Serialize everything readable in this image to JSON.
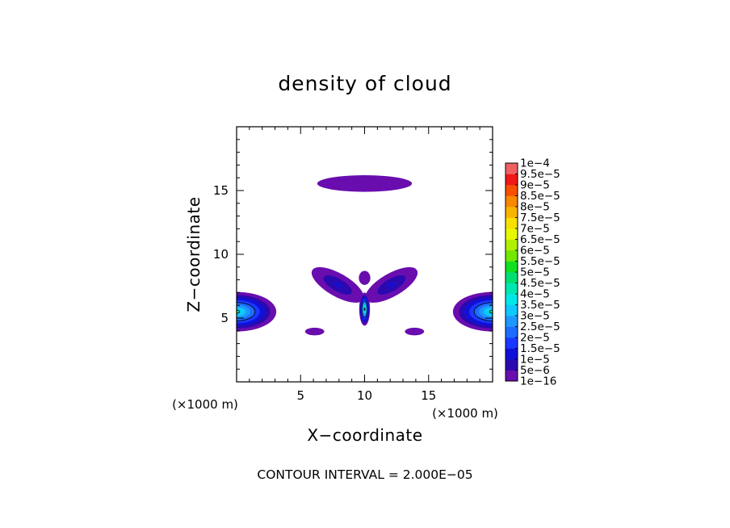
{
  "chart_data": {
    "type": "heatmap",
    "title": "density of cloud",
    "xlabel": "X−coordinate",
    "ylabel": "Z−coordinate",
    "xunit": "(×1000 m)",
    "yunit": "(×1000 m)",
    "xlim": [
      0,
      20
    ],
    "ylim": [
      0,
      20
    ],
    "xticks": [
      5,
      10,
      15
    ],
    "yticks": [
      5,
      10,
      15
    ],
    "xtick_labels": [
      "5",
      "10",
      "15"
    ],
    "ytick_labels": [
      "5",
      "10",
      "15"
    ],
    "contour_interval_text": "CONTOUR INTERVAL = 2.000E−05",
    "colorbar": {
      "levels": [
        1e-16,
        5e-06,
        1e-05,
        1.5e-05,
        2e-05,
        2.5e-05,
        3e-05,
        3.5e-05,
        4e-05,
        4.5e-05,
        5e-05,
        5.5e-05,
        6e-05,
        6.5e-05,
        7e-05,
        7.5e-05,
        8e-05,
        8.5e-05,
        9e-05,
        9.5e-05,
        0.0001
      ],
      "labels": [
        "1e−16",
        "5e−6",
        "1e−5",
        "1.5e−5",
        "2e−5",
        "2.5e−5",
        "3e−5",
        "3.5e−5",
        "4e−5",
        "4.5e−5",
        "5e−5",
        "5.5e−5",
        "6e−5",
        "6.5e−5",
        "7e−5",
        "7.5e−5",
        "8e−5",
        "8.5e−5",
        "9e−5",
        "9.5e−5",
        "1e−4"
      ],
      "colors": [
        "#6a0daf",
        "#2a0ab0",
        "#1010d8",
        "#1a38ff",
        "#1e6cff",
        "#1e98ff",
        "#10c8ff",
        "#00e8e8",
        "#00e8b0",
        "#00e070",
        "#10e020",
        "#70e800",
        "#b0f000",
        "#e8f800",
        "#f8e000",
        "#f8b400",
        "#f88800",
        "#f85000",
        "#f01818",
        "#f06060"
      ]
    },
    "features": [
      {
        "kind": "blob",
        "cx": 10.0,
        "cz": 15.55,
        "rx": 3.7,
        "rz": 0.65,
        "peak": 3e-06
      },
      {
        "kind": "blob",
        "cx": 7.9,
        "cz": 7.6,
        "rx": 2.3,
        "rz": 0.9,
        "rot": -30,
        "peak": 1.2e-05
      },
      {
        "kind": "blob",
        "cx": 12.1,
        "cz": 7.6,
        "rx": 2.3,
        "rz": 0.9,
        "rot": 30,
        "peak": 1.2e-05
      },
      {
        "kind": "blob",
        "cx": 10.0,
        "cz": 8.15,
        "rx": 0.45,
        "rz": 0.55,
        "peak": 2e-06
      },
      {
        "kind": "blob",
        "cx": 10.0,
        "cz": 5.7,
        "rx": 0.42,
        "rz": 1.3,
        "peak": 4.4e-05
      },
      {
        "kind": "blob",
        "cx": 0.0,
        "cz": 5.5,
        "rx": 3.1,
        "rz": 1.55,
        "peak": 4e-05
      },
      {
        "kind": "blob",
        "cx": 20.0,
        "cz": 5.5,
        "rx": 3.1,
        "rz": 1.55,
        "peak": 4e-05
      },
      {
        "kind": "blob",
        "cx": 6.1,
        "cz": 3.95,
        "rx": 0.75,
        "rz": 0.3,
        "peak": 2e-06
      },
      {
        "kind": "blob",
        "cx": 13.9,
        "cz": 3.95,
        "rx": 0.75,
        "rz": 0.3,
        "peak": 2e-06
      }
    ]
  }
}
